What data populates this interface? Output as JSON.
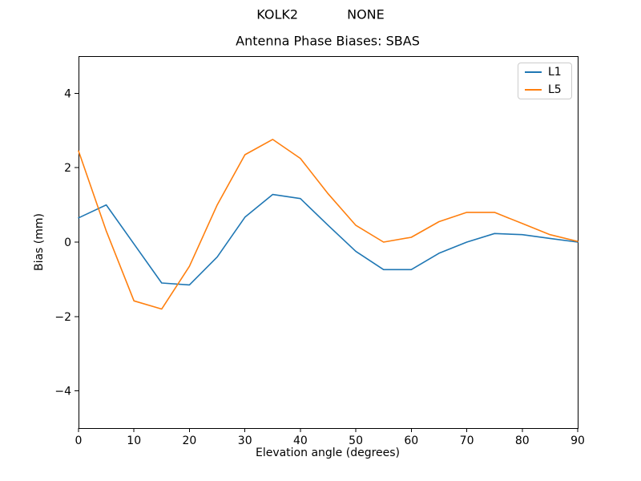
{
  "figure": {
    "suptitle": "KOLK2            NONE"
  },
  "chart_data": {
    "type": "line",
    "title": "Antenna Phase Biases: SBAS",
    "xlabel": "Elevation angle (degrees)",
    "ylabel": "Bias (mm)",
    "xlim": [
      0,
      90
    ],
    "ylim": [
      -5,
      5
    ],
    "xticks": [
      0,
      10,
      20,
      30,
      40,
      50,
      60,
      70,
      80,
      90
    ],
    "yticks": [
      -4,
      -2,
      0,
      2,
      4
    ],
    "grid": false,
    "legend_position": "upper right",
    "x": [
      0,
      5,
      10,
      15,
      20,
      25,
      30,
      35,
      40,
      45,
      50,
      55,
      60,
      65,
      70,
      75,
      80,
      85,
      90
    ],
    "series": [
      {
        "name": "L1",
        "color": "#1f77b4",
        "values": [
          0.65,
          1.0,
          -0.05,
          -1.1,
          -1.15,
          -0.4,
          0.67,
          1.28,
          1.17,
          0.45,
          -0.25,
          -0.74,
          -0.74,
          -0.3,
          0.0,
          0.23,
          0.2,
          0.1,
          0.0
        ]
      },
      {
        "name": "L5",
        "color": "#ff7f0e",
        "values": [
          2.45,
          0.3,
          -1.58,
          -1.8,
          -0.65,
          1.0,
          2.35,
          2.76,
          2.25,
          1.3,
          0.45,
          0.0,
          0.13,
          0.55,
          0.8,
          0.8,
          0.5,
          0.2,
          0.02
        ]
      }
    ]
  }
}
